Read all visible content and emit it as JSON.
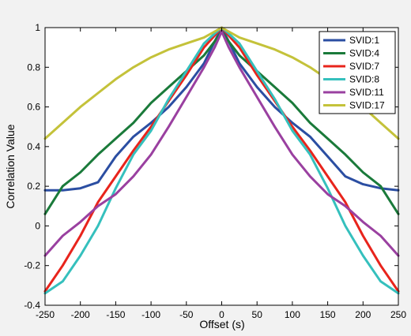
{
  "chart_data": {
    "type": "line",
    "xlabel": "Offset (s)",
    "ylabel": "Correlation Value",
    "xlim": [
      -250,
      250
    ],
    "ylim": [
      -0.4,
      1
    ],
    "xticks": [
      "-250",
      "-200",
      "-150",
      "-100",
      "-50",
      "0",
      "50",
      "100",
      "150",
      "200",
      "250"
    ],
    "yticks": [
      "-0.4",
      "-0.2",
      "0",
      "0.2",
      "0.4",
      "0.6",
      "0.8",
      "1"
    ],
    "grid": false,
    "legend_position": "top-right",
    "x": [
      -250,
      -225,
      -200,
      -175,
      -150,
      -125,
      -100,
      -75,
      -50,
      -25,
      -10,
      0,
      10,
      25,
      50,
      75,
      100,
      125,
      150,
      175,
      200,
      225,
      250
    ],
    "series": [
      {
        "name": "SVID:1",
        "color": "#2b4ea2",
        "values": [
          0.18,
          0.18,
          0.19,
          0.22,
          0.35,
          0.45,
          0.52,
          0.6,
          0.7,
          0.82,
          0.93,
          1.0,
          0.93,
          0.82,
          0.7,
          0.6,
          0.52,
          0.45,
          0.35,
          0.25,
          0.21,
          0.19,
          0.18
        ]
      },
      {
        "name": "SVID:4",
        "color": "#1a7a3a",
        "values": [
          0.06,
          0.2,
          0.27,
          0.36,
          0.44,
          0.52,
          0.62,
          0.7,
          0.78,
          0.86,
          0.93,
          0.98,
          0.93,
          0.86,
          0.78,
          0.7,
          0.62,
          0.52,
          0.44,
          0.36,
          0.27,
          0.2,
          0.06
        ]
      },
      {
        "name": "SVID:7",
        "color": "#e8241c",
        "values": [
          -0.33,
          -0.2,
          -0.05,
          0.12,
          0.25,
          0.38,
          0.5,
          0.63,
          0.76,
          0.9,
          0.96,
          1.0,
          0.96,
          0.9,
          0.76,
          0.63,
          0.5,
          0.38,
          0.25,
          0.12,
          -0.05,
          -0.2,
          -0.33
        ]
      },
      {
        "name": "SVID:8",
        "color": "#35c0bd",
        "values": [
          -0.34,
          -0.28,
          -0.15,
          0.0,
          0.19,
          0.36,
          0.48,
          0.64,
          0.78,
          0.92,
          0.97,
          1.0,
          0.97,
          0.92,
          0.78,
          0.64,
          0.48,
          0.36,
          0.19,
          0.0,
          -0.15,
          -0.28,
          -0.34
        ]
      },
      {
        "name": "SVID:11",
        "color": "#9a40a0",
        "values": [
          -0.15,
          -0.05,
          0.02,
          0.1,
          0.16,
          0.25,
          0.36,
          0.5,
          0.65,
          0.8,
          0.9,
          0.98,
          0.9,
          0.8,
          0.65,
          0.5,
          0.36,
          0.25,
          0.16,
          0.1,
          0.02,
          -0.05,
          -0.15
        ]
      },
      {
        "name": "SVID:17",
        "color": "#c4c23a",
        "values": [
          0.44,
          0.52,
          0.6,
          0.67,
          0.74,
          0.8,
          0.85,
          0.89,
          0.92,
          0.95,
          0.98,
          1.0,
          0.98,
          0.95,
          0.92,
          0.89,
          0.85,
          0.8,
          0.74,
          0.67,
          0.6,
          0.52,
          0.44
        ]
      }
    ]
  }
}
